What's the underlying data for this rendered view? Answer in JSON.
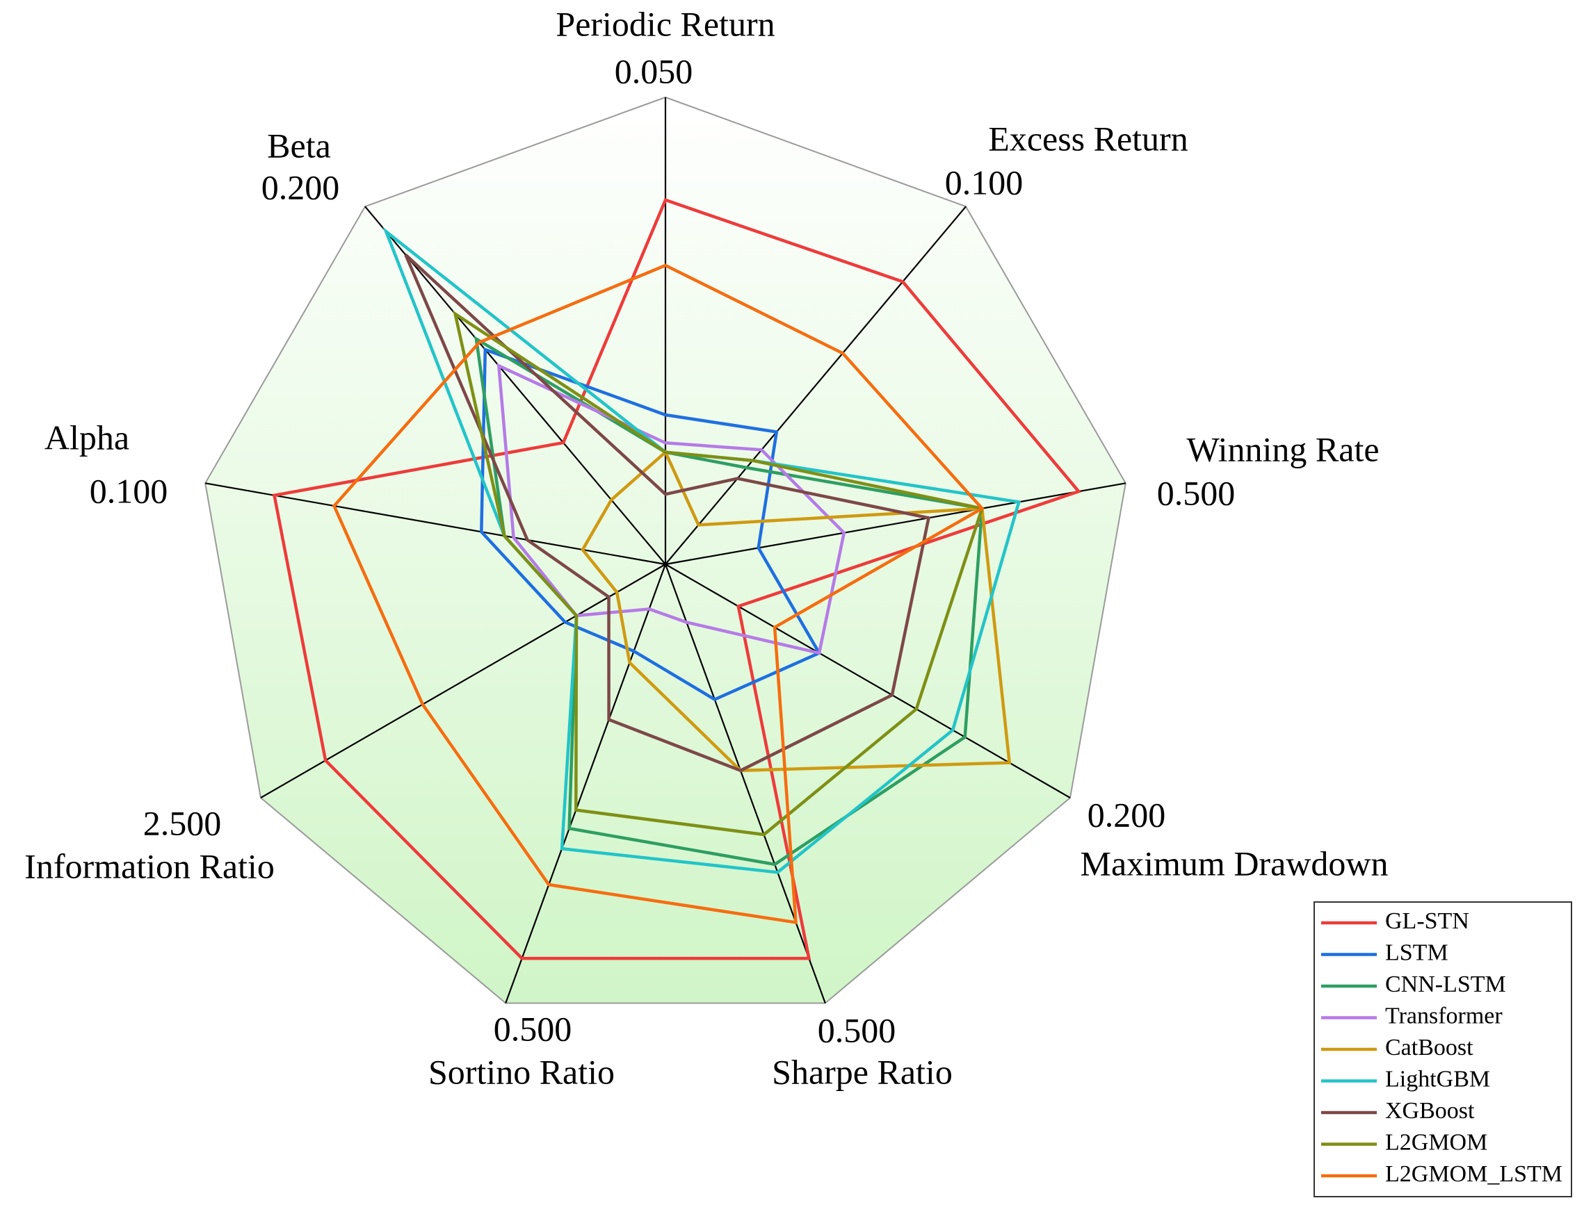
{
  "chart_data": {
    "type": "radar",
    "title": "",
    "axes": [
      {
        "name": "Periodic Return",
        "max_label": "0.050",
        "max": 0.05
      },
      {
        "name": "Excess Return",
        "max_label": "0.100",
        "max": 0.1
      },
      {
        "name": "Winning Rate",
        "max_label": "0.500",
        "max": 0.5
      },
      {
        "name": "Maximum Drawdown",
        "max_label": "0.200",
        "max": 0.2
      },
      {
        "name": "Sharpe Ratio",
        "max_label": "0.500",
        "max": 0.5
      },
      {
        "name": "Sortino Ratio",
        "max_label": "0.500",
        "max": 0.5
      },
      {
        "name": "Information Ratio",
        "max_label": "2.500",
        "max": 2.5
      },
      {
        "name": "Alpha",
        "max_label": "0.100",
        "max": 0.1
      },
      {
        "name": "Beta",
        "max_label": "0.200",
        "max": 0.2
      }
    ],
    "legend_position": "bottom-right",
    "series": [
      {
        "name": "GL-STN",
        "color": "#ee3b3b",
        "values": [
          0.039,
          0.079,
          0.449,
          0.036,
          0.449,
          0.449,
          2.1,
          0.085,
          0.068
        ]
      },
      {
        "name": "LSTM",
        "color": "#1e6fe0",
        "values": [
          0.016,
          0.037,
          0.101,
          0.076,
          0.154,
          0.099,
          0.62,
          0.04,
          0.12
        ]
      },
      {
        "name": "CNN-LSTM",
        "color": "#2e9e62",
        "values": [
          0.012,
          0.027,
          0.344,
          0.148,
          0.342,
          0.301,
          0.55,
          0.035,
          0.126
        ]
      },
      {
        "name": "Transformer",
        "color": "#b57be6",
        "values": [
          0.013,
          0.032,
          0.194,
          0.076,
          0.066,
          0.051,
          0.55,
          0.033,
          0.111
        ]
      },
      {
        "name": "CatBoost",
        "color": "#cf9a12",
        "values": [
          0.012,
          0.011,
          0.344,
          0.17,
          0.235,
          0.112,
          0.3,
          0.018,
          0.036
        ]
      },
      {
        "name": "LightGBM",
        "color": "#22c4c8",
        "values": [
          0.012,
          0.029,
          0.384,
          0.142,
          0.351,
          0.324,
          0.55,
          0.035,
          0.186
        ]
      },
      {
        "name": "XGBoost",
        "color": "#7d4848",
        "values": [
          0.0075,
          0.024,
          0.286,
          0.112,
          0.235,
          0.177,
          0.35,
          0.03,
          0.173
        ]
      },
      {
        "name": "L2GMOM",
        "color": "#7e8f15",
        "values": [
          0.012,
          0.029,
          0.344,
          0.124,
          0.308,
          0.28,
          0.55,
          0.035,
          0.14
        ]
      },
      {
        "name": "L2GMOM_LSTM",
        "color": "#f56d10",
        "values": [
          0.032,
          0.059,
          0.344,
          0.054,
          0.408,
          0.365,
          1.5,
          0.072,
          0.124
        ]
      }
    ]
  }
}
